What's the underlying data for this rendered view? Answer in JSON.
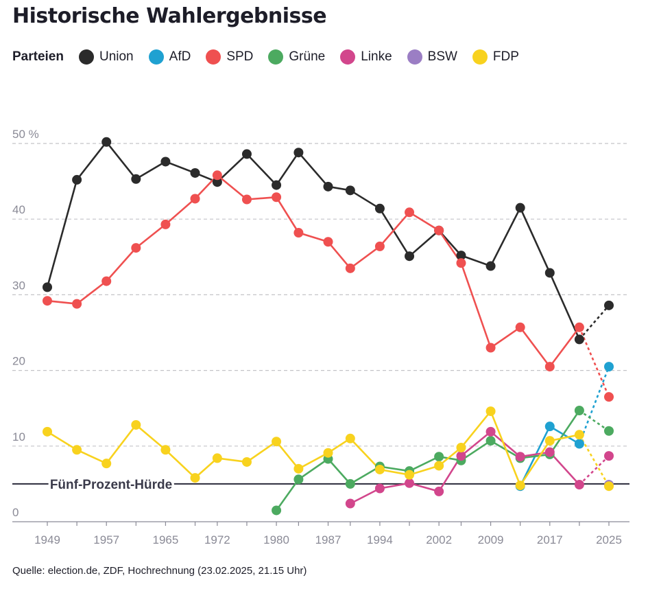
{
  "title": "Historische Wahlergebnisse",
  "legend": {
    "label": "Parteien"
  },
  "source": "Quelle: election.de, ZDF, Hochrechnung (23.02.2025, 21.15 Uhr)",
  "chart_data": {
    "type": "line",
    "title": "Historische Wahlergebnisse",
    "xlabel": "",
    "ylabel": "",
    "ylim": [
      0,
      55
    ],
    "grid": true,
    "legend_position": "top",
    "x_ticks": [
      "1949",
      "1957",
      "1965",
      "1972",
      "1980",
      "1987",
      "1994",
      "2002",
      "2009",
      "2017",
      "2025"
    ],
    "y_ticks": [
      {
        "value": 0,
        "label": "0"
      },
      {
        "value": 10,
        "label": "10"
      },
      {
        "value": 20,
        "label": "20"
      },
      {
        "value": 30,
        "label": "30"
      },
      {
        "value": 40,
        "label": "40"
      },
      {
        "value": 50,
        "label": "50 %"
      }
    ],
    "threshold": {
      "value": 5,
      "label": "Fünf-Prozent-Hürde"
    },
    "projection_from": 2021,
    "x": [
      1949,
      1953,
      1957,
      1961,
      1965,
      1969,
      1972,
      1976,
      1980,
      1983,
      1987,
      1990,
      1994,
      1998,
      2002,
      2005,
      2009,
      2013,
      2017,
      2021,
      2025
    ],
    "series": [
      {
        "name": "Union",
        "color": "#2b2b2b",
        "values": [
          31.0,
          45.2,
          50.2,
          45.3,
          47.6,
          46.1,
          44.9,
          48.6,
          44.5,
          48.8,
          44.3,
          43.8,
          41.4,
          35.1,
          38.5,
          35.2,
          33.8,
          41.5,
          32.9,
          24.1,
          28.6
        ]
      },
      {
        "name": "AfD",
        "color": "#1fa1d1",
        "values": [
          null,
          null,
          null,
          null,
          null,
          null,
          null,
          null,
          null,
          null,
          null,
          null,
          null,
          null,
          null,
          null,
          null,
          4.7,
          12.6,
          10.3,
          20.5
        ]
      },
      {
        "name": "SPD",
        "color": "#ef5050",
        "values": [
          29.2,
          28.8,
          31.8,
          36.2,
          39.3,
          42.7,
          45.8,
          42.6,
          42.9,
          38.2,
          37.0,
          33.5,
          36.4,
          40.9,
          38.5,
          34.2,
          23.0,
          25.7,
          20.5,
          25.7,
          16.5
        ]
      },
      {
        "name": "Grüne",
        "color": "#4caa60",
        "values": [
          null,
          null,
          null,
          null,
          null,
          null,
          null,
          null,
          1.5,
          5.6,
          8.3,
          5.0,
          7.3,
          6.7,
          8.6,
          8.1,
          10.7,
          8.4,
          8.9,
          14.7,
          12.0
        ]
      },
      {
        "name": "Linke",
        "color": "#d2468c",
        "values": [
          null,
          null,
          null,
          null,
          null,
          null,
          null,
          null,
          null,
          null,
          null,
          2.4,
          4.4,
          5.1,
          4.0,
          8.7,
          11.9,
          8.6,
          9.2,
          4.9,
          8.7
        ]
      },
      {
        "name": "BSW",
        "color": "#9b7ec4",
        "values": [
          null,
          null,
          null,
          null,
          null,
          null,
          null,
          null,
          null,
          null,
          null,
          null,
          null,
          null,
          null,
          null,
          null,
          null,
          null,
          null,
          4.9
        ]
      },
      {
        "name": "FDP",
        "color": "#f8d21e",
        "values": [
          11.9,
          9.5,
          7.7,
          12.8,
          9.5,
          5.8,
          8.4,
          7.9,
          10.6,
          7.0,
          9.1,
          11.0,
          6.9,
          6.2,
          7.4,
          9.8,
          14.6,
          4.8,
          10.7,
          11.5,
          4.7
        ]
      }
    ]
  }
}
